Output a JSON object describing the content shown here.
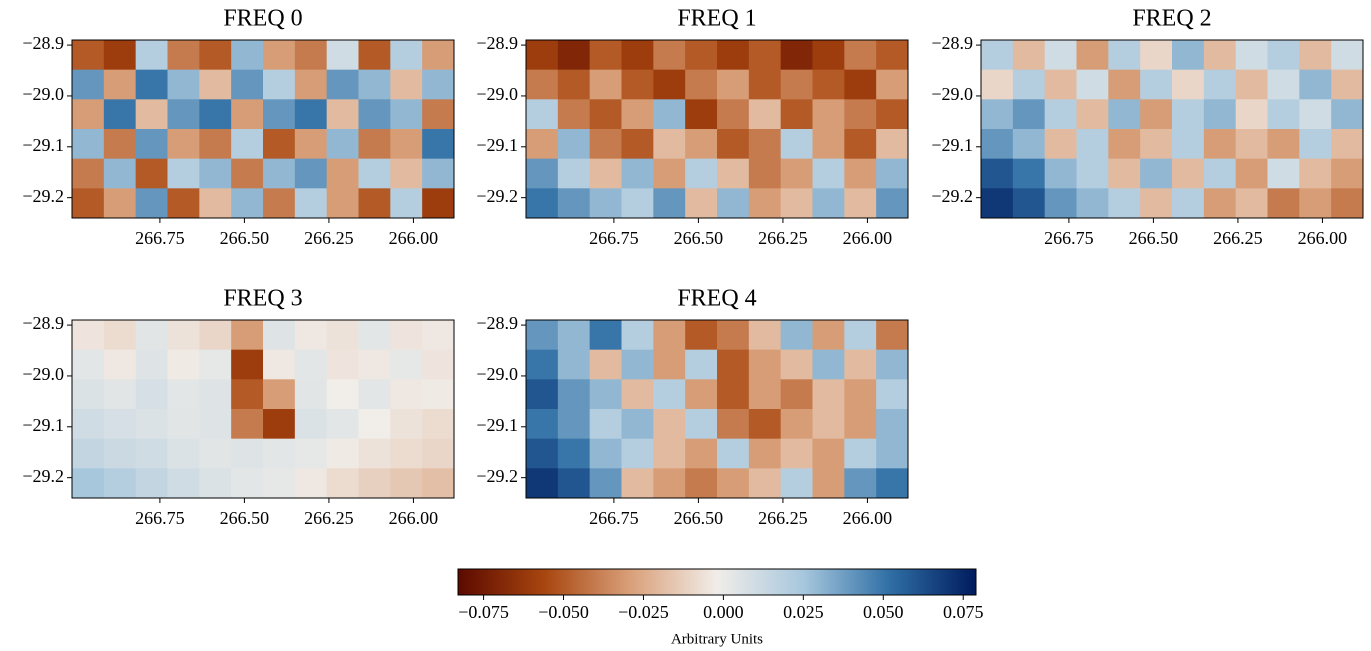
{
  "chart_data": [
    {
      "type": "heatmap",
      "title": "FREQ 0",
      "xlim": [
        267.01,
        265.88
      ],
      "ylim": [
        -29.24,
        -28.89
      ],
      "xticks": [
        266.75,
        {
          "value": 266.5,
          "label": "266.50"
        },
        266.25,
        {
          "value": 266,
          "label": "266.00"
        }
      ],
      "yticks": [
        {
          "value": -28.9,
          "label": "−28.9"
        },
        {
          "value": -29.0,
          "label": "−29.0"
        },
        {
          "value": -29.1,
          "label": "−29.1"
        },
        {
          "value": -29.2,
          "label": "−29.2"
        }
      ],
      "values": [
        [
          -0.05,
          -0.06,
          0.02,
          -0.04,
          -0.05,
          0.03,
          -0.03,
          -0.04,
          0.01,
          -0.05,
          0.02,
          -0.03
        ],
        [
          0.04,
          -0.03,
          0.05,
          0.03,
          -0.02,
          0.04,
          0.02,
          -0.03,
          0.04,
          0.03,
          -0.02,
          0.03
        ],
        [
          -0.03,
          0.05,
          -0.02,
          0.04,
          0.05,
          -0.03,
          0.04,
          0.05,
          -0.02,
          0.04,
          0.03,
          -0.04
        ],
        [
          0.03,
          -0.04,
          0.04,
          -0.03,
          -0.04,
          0.02,
          -0.05,
          -0.03,
          0.03,
          -0.04,
          -0.03,
          0.05
        ],
        [
          -0.04,
          0.03,
          -0.05,
          0.02,
          0.03,
          -0.04,
          0.03,
          0.04,
          -0.03,
          0.02,
          -0.02,
          0.03
        ],
        [
          -0.05,
          -0.03,
          0.04,
          -0.05,
          -0.02,
          0.03,
          -0.04,
          0.02,
          -0.03,
          -0.05,
          0.02,
          -0.06
        ]
      ]
    },
    {
      "type": "heatmap",
      "title": "FREQ 1",
      "xlim": [
        267.01,
        265.88
      ],
      "ylim": [
        -29.24,
        -28.89
      ],
      "xticks": [
        266.75,
        {
          "value": 266.5,
          "label": "266.50"
        },
        266.25,
        {
          "value": 266,
          "label": "266.00"
        }
      ],
      "yticks": [
        {
          "value": -28.9,
          "label": "−28.9"
        },
        {
          "value": -29.0,
          "label": "−29.0"
        },
        {
          "value": -29.1,
          "label": "−29.1"
        },
        {
          "value": -29.2,
          "label": "−29.2"
        }
      ],
      "values": [
        [
          -0.06,
          -0.07,
          -0.05,
          -0.06,
          -0.04,
          -0.05,
          -0.06,
          -0.05,
          -0.07,
          -0.06,
          -0.04,
          -0.05
        ],
        [
          -0.04,
          -0.05,
          -0.03,
          -0.05,
          -0.06,
          -0.04,
          -0.03,
          -0.05,
          -0.04,
          -0.05,
          -0.06,
          -0.03
        ],
        [
          0.02,
          -0.04,
          -0.05,
          -0.03,
          0.03,
          -0.06,
          -0.04,
          -0.02,
          -0.05,
          -0.03,
          -0.04,
          -0.05
        ],
        [
          -0.03,
          0.03,
          -0.04,
          -0.05,
          -0.02,
          -0.03,
          -0.05,
          -0.04,
          0.02,
          -0.03,
          -0.05,
          -0.02
        ],
        [
          0.04,
          0.02,
          -0.02,
          0.03,
          -0.03,
          0.02,
          -0.02,
          -0.04,
          -0.03,
          0.02,
          -0.03,
          0.03
        ],
        [
          0.05,
          0.04,
          0.03,
          0.02,
          0.04,
          -0.02,
          0.03,
          -0.03,
          -0.02,
          0.03,
          -0.02,
          0.04
        ]
      ]
    },
    {
      "type": "heatmap",
      "title": "FREQ 2",
      "xlim": [
        267.01,
        265.88
      ],
      "ylim": [
        -29.24,
        -28.89
      ],
      "xticks": [
        266.75,
        {
          "value": 266.5,
          "label": "266.50"
        },
        266.25,
        {
          "value": 266,
          "label": "266.00"
        }
      ],
      "yticks": [
        {
          "value": -28.9,
          "label": "−28.9"
        },
        {
          "value": -29.0,
          "label": "−29.0"
        },
        {
          "value": -29.1,
          "label": "−29.1"
        },
        {
          "value": -29.2,
          "label": "−29.2"
        }
      ],
      "values": [
        [
          0.02,
          -0.02,
          0.01,
          -0.03,
          0.02,
          -0.01,
          0.03,
          -0.02,
          0.01,
          0.02,
          -0.02,
          0.01
        ],
        [
          -0.01,
          0.02,
          -0.02,
          0.01,
          -0.03,
          0.02,
          -0.01,
          0.02,
          -0.02,
          0.01,
          0.03,
          -0.02
        ],
        [
          0.03,
          0.04,
          0.02,
          -0.02,
          0.03,
          -0.03,
          0.02,
          0.03,
          -0.01,
          0.02,
          0.01,
          0.03
        ],
        [
          0.04,
          0.03,
          -0.02,
          0.02,
          -0.03,
          -0.02,
          0.02,
          -0.03,
          -0.02,
          -0.03,
          0.02,
          -0.02
        ],
        [
          0.06,
          0.05,
          0.03,
          0.02,
          -0.02,
          0.03,
          -0.02,
          0.02,
          -0.03,
          0.01,
          -0.02,
          -0.03
        ],
        [
          0.07,
          0.06,
          0.04,
          0.03,
          0.02,
          -0.02,
          0.02,
          -0.03,
          -0.02,
          -0.04,
          -0.03,
          -0.04
        ]
      ]
    },
    {
      "type": "heatmap",
      "title": "FREQ 3",
      "xlim": [
        267.01,
        265.88
      ],
      "ylim": [
        -29.24,
        -28.89
      ],
      "xticks": [
        266.75,
        {
          "value": 266.5,
          "label": "266.50"
        },
        266.25,
        {
          "value": 266,
          "label": "266.00"
        }
      ],
      "yticks": [
        {
          "value": -28.9,
          "label": "−28.9"
        },
        {
          "value": -29.0,
          "label": "−29.0"
        },
        {
          "value": -29.1,
          "label": "−29.1"
        },
        {
          "value": -29.2,
          "label": "−29.2"
        }
      ],
      "values": [
        [
          -0.005,
          -0.008,
          0.004,
          -0.006,
          -0.01,
          -0.03,
          0.005,
          -0.004,
          -0.006,
          0.003,
          -0.005,
          -0.004
        ],
        [
          0.003,
          -0.004,
          0.005,
          -0.003,
          0.002,
          -0.06,
          -0.004,
          0.003,
          -0.005,
          -0.004,
          0.002,
          -0.005
        ],
        [
          0.006,
          0.004,
          0.008,
          0.003,
          0.005,
          -0.05,
          -0.03,
          0.004,
          -0.002,
          0.003,
          -0.004,
          -0.003
        ],
        [
          0.01,
          0.008,
          0.006,
          0.004,
          0.005,
          -0.04,
          -0.06,
          0.006,
          0.003,
          -0.002,
          -0.006,
          -0.008
        ],
        [
          0.015,
          0.012,
          0.01,
          0.006,
          0.004,
          0.005,
          0.003,
          0.002,
          -0.003,
          -0.006,
          -0.008,
          -0.01
        ],
        [
          0.025,
          0.02,
          0.015,
          0.01,
          0.006,
          0.003,
          0.002,
          -0.004,
          -0.008,
          -0.012,
          -0.015,
          -0.018
        ]
      ]
    },
    {
      "type": "heatmap",
      "title": "FREQ 4",
      "xlim": [
        267.01,
        265.88
      ],
      "ylim": [
        -29.24,
        -28.89
      ],
      "xticks": [
        266.75,
        {
          "value": 266.5,
          "label": "266.50"
        },
        266.25,
        {
          "value": 266,
          "label": "266.00"
        }
      ],
      "yticks": [
        {
          "value": -28.9,
          "label": "−28.9"
        },
        {
          "value": -29.0,
          "label": "−29.0"
        },
        {
          "value": -29.1,
          "label": "−29.1"
        },
        {
          "value": -29.2,
          "label": "−29.2"
        }
      ],
      "values": [
        [
          0.04,
          0.03,
          0.05,
          0.02,
          -0.03,
          -0.05,
          -0.04,
          -0.02,
          0.03,
          -0.03,
          0.02,
          -0.04
        ],
        [
          0.05,
          0.03,
          -0.02,
          0.03,
          -0.03,
          0.02,
          -0.05,
          -0.03,
          -0.02,
          0.03,
          -0.02,
          0.03
        ],
        [
          0.06,
          0.04,
          0.03,
          -0.02,
          0.02,
          -0.03,
          -0.05,
          -0.03,
          -0.04,
          -0.02,
          -0.03,
          0.02
        ],
        [
          0.05,
          0.04,
          0.02,
          0.03,
          -0.02,
          0.02,
          -0.04,
          -0.05,
          -0.03,
          -0.02,
          -0.03,
          0.03
        ],
        [
          0.06,
          0.05,
          0.03,
          0.02,
          -0.02,
          -0.03,
          0.02,
          -0.03,
          -0.02,
          -0.03,
          0.02,
          0.03
        ],
        [
          0.07,
          0.06,
          0.04,
          -0.02,
          -0.03,
          -0.04,
          -0.03,
          -0.02,
          0.02,
          -0.03,
          0.04,
          0.05
        ]
      ]
    },
    {
      "type": "colorbar",
      "label": "Arbitrary Units",
      "clim": [
        -0.083,
        0.079
      ],
      "ticks": [
        {
          "value": -0.075,
          "label": "−0.075"
        },
        {
          "value": -0.05,
          "label": "−0.050"
        },
        {
          "value": -0.025,
          "label": "−0.025"
        },
        {
          "value": 0,
          "label": "0.000"
        },
        0.025,
        {
          "value": 0.05,
          "label": "0.050"
        },
        0.075
      ],
      "colormap": [
        "#5c0a00",
        "#a8460f",
        "#d9a07a",
        "#f1ede9",
        "#a7c7dd",
        "#2f6fa5",
        "#001b5e"
      ]
    }
  ]
}
